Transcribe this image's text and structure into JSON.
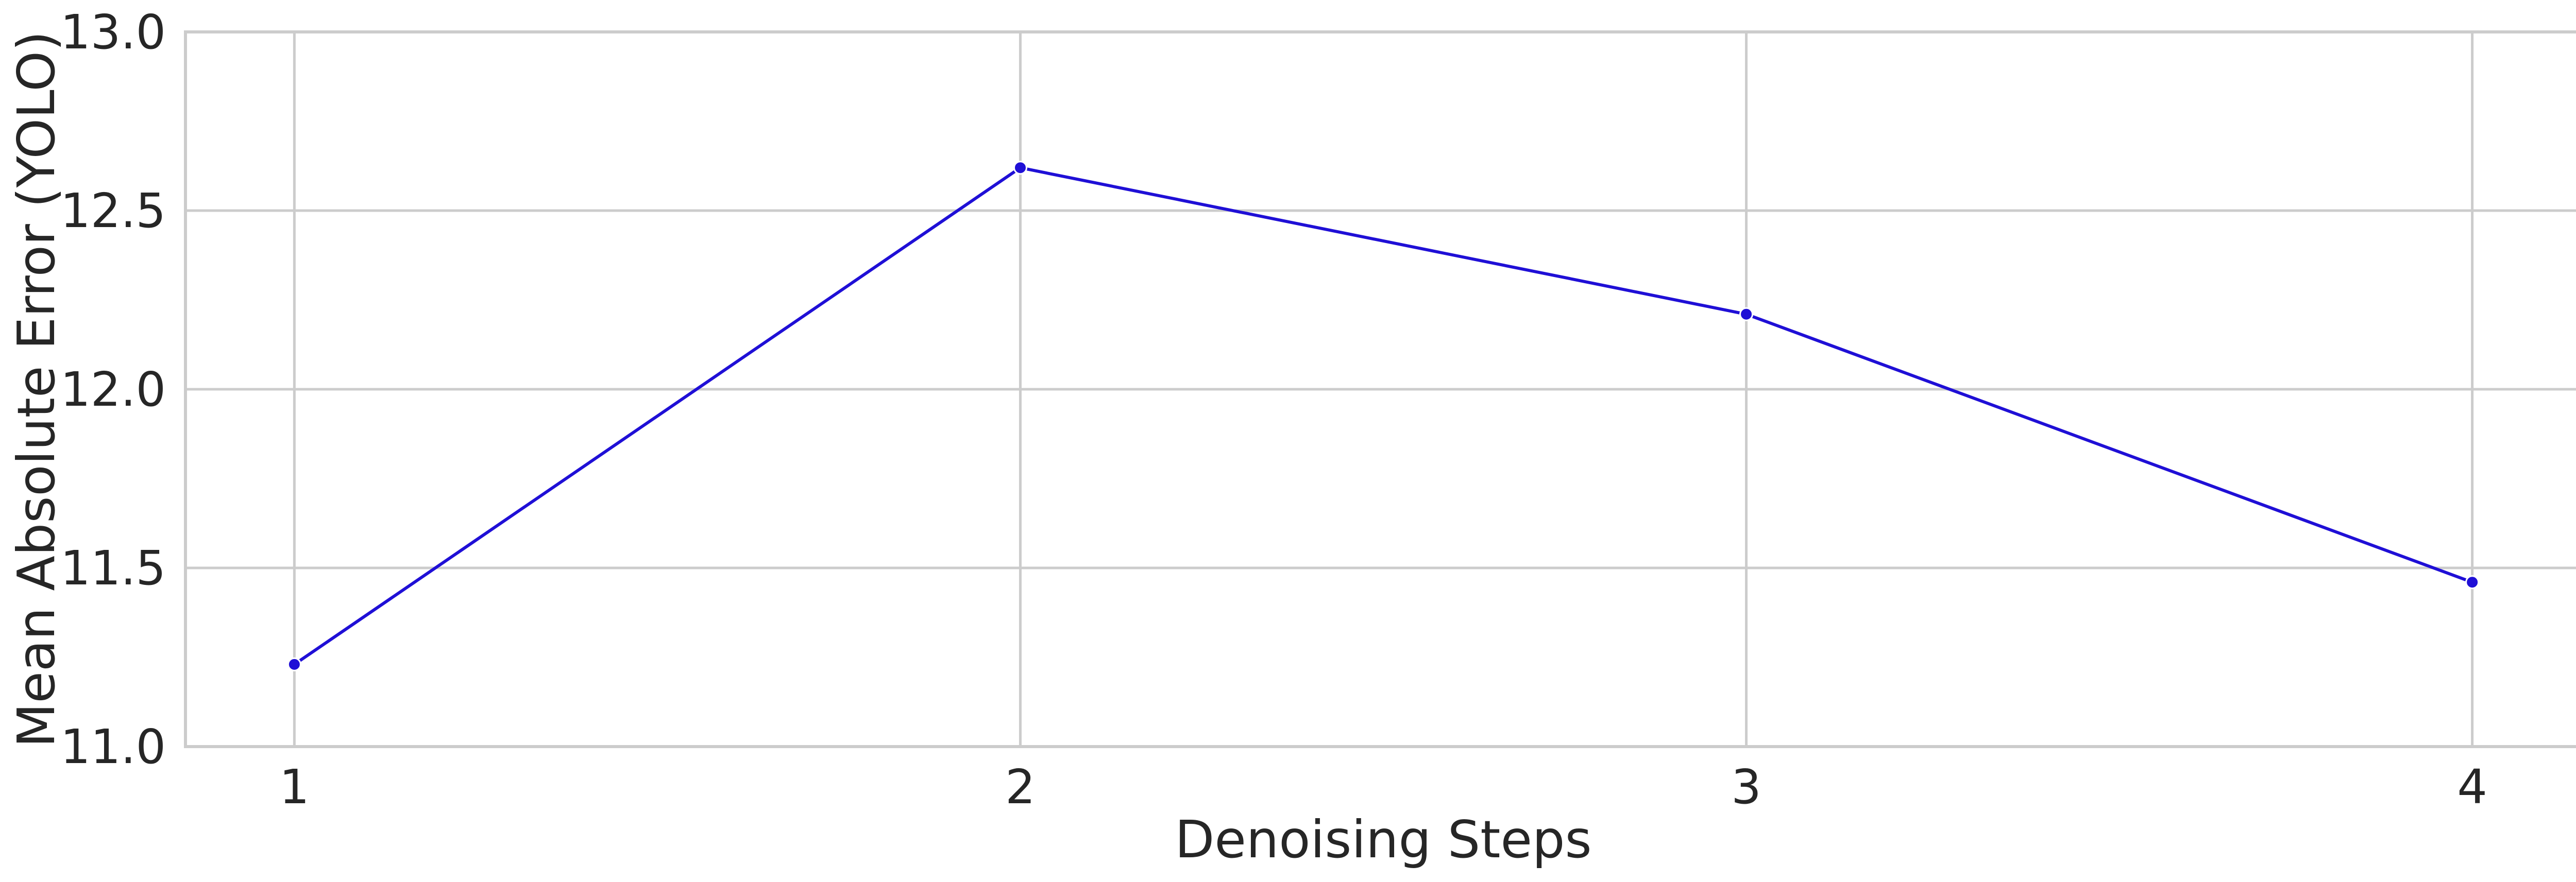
{
  "chart_data": {
    "type": "line",
    "title": "",
    "xlabel": "Denoising Steps",
    "ylabel": "Mean Absolute Error (YOLO)",
    "x": [
      1,
      2,
      3,
      4
    ],
    "series": [
      {
        "values": [
          11.23,
          12.62,
          12.21,
          11.46
        ],
        "color": "#1f0fd6",
        "marker": "circle"
      }
    ],
    "xlim": [
      0.85,
      4.15
    ],
    "ylim": [
      11.0,
      13.0
    ],
    "xticks": [
      "1",
      "2",
      "3",
      "4"
    ],
    "yticks": [
      "11.0",
      "11.5",
      "12.0",
      "12.5",
      "13.0"
    ],
    "grid": true,
    "legend": "none"
  }
}
